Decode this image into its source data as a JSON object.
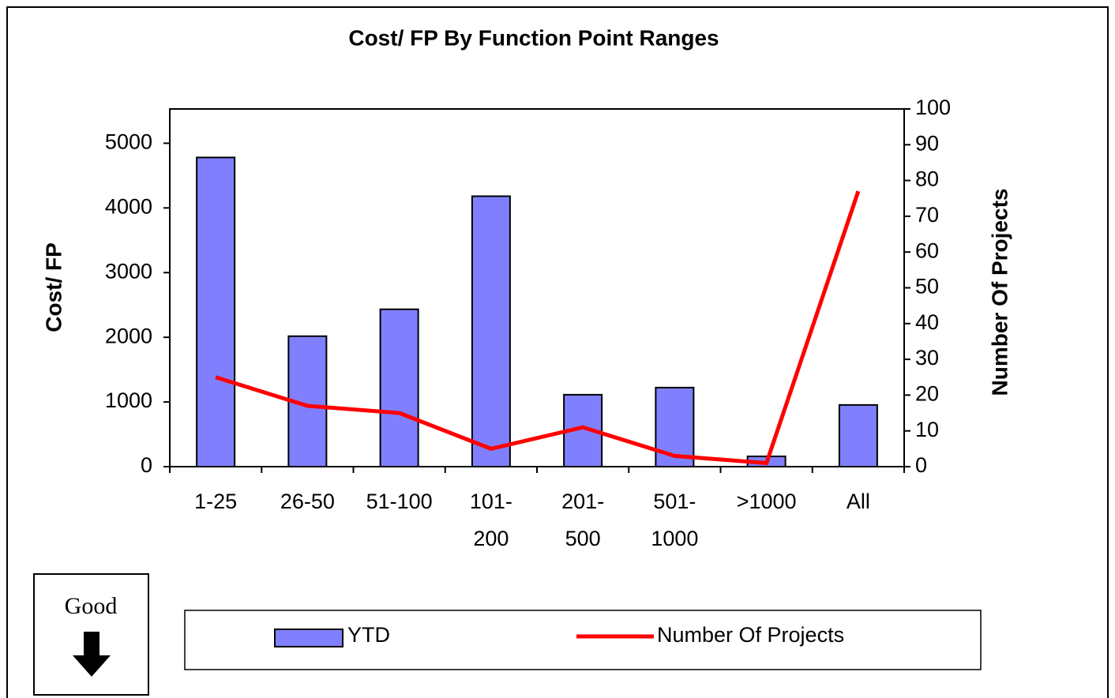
{
  "chart_data": {
    "type": "bar_line",
    "title": "Cost/ FP By Function Point Ranges",
    "ylabel": "Cost/ FP",
    "y2label": "Number Of Projects",
    "categories": [
      "1-25",
      "26-50",
      "51-100",
      "101-\n200",
      "201-\n500",
      "501-\n1000",
      ">1000",
      "All"
    ],
    "series": [
      {
        "name": "YTD",
        "type": "bar",
        "color": "#8080ff",
        "values": [
          4780,
          2017,
          2433,
          4181,
          1112,
          1222,
          159,
          954
        ]
      },
      {
        "name": "Number Of Projects",
        "type": "line",
        "axis": "y2",
        "color": "#ff0000",
        "values": [
          25,
          17,
          15,
          5,
          11,
          3,
          1,
          77
        ]
      }
    ],
    "ylim": [
      0,
      5530
    ],
    "yticks": [
      0,
      1000,
      2000,
      3000,
      4000,
      5000
    ],
    "y2lim": [
      0,
      100
    ],
    "y2ticks": [
      0,
      10,
      20,
      30,
      40,
      50,
      60,
      70,
      80,
      90,
      100
    ],
    "annotation": "Good"
  }
}
